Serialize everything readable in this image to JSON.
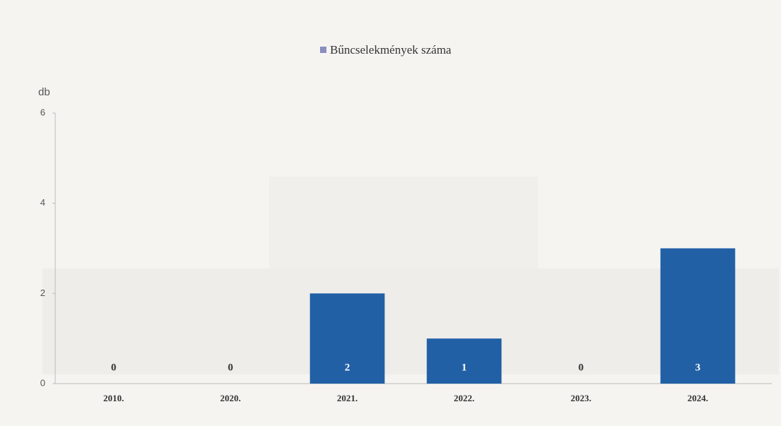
{
  "chart_data": {
    "type": "bar",
    "legend": "Bűncselekmények száma",
    "y_axis_label": "db",
    "categories": [
      "2010.",
      "2020.",
      "2021.",
      "2022.",
      "2023.",
      "2024."
    ],
    "values": [
      0,
      0,
      2,
      1,
      0,
      3
    ],
    "color": "#2260a6",
    "ylim": [
      0,
      6
    ],
    "yticks": [
      0,
      2,
      4,
      6
    ]
  }
}
